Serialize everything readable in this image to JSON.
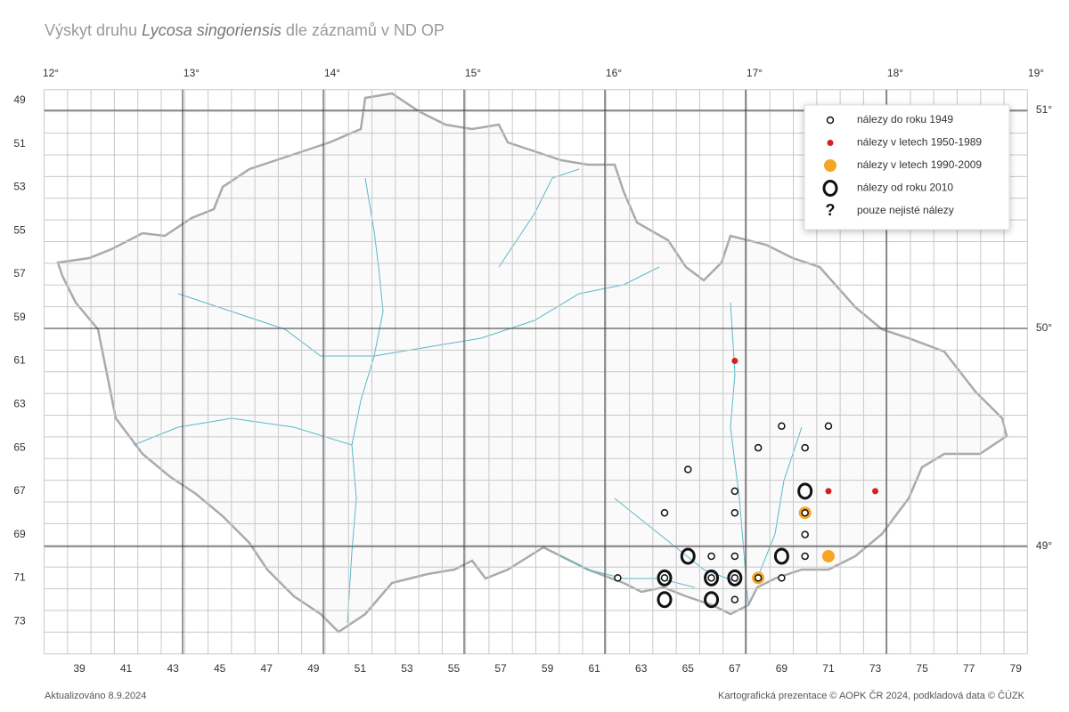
{
  "map": {
    "title": {
      "prefix": "Výskyt druhu",
      "species": "Lycosa singoriensis",
      "suffix": "dle záznamů v ND OP"
    },
    "updated": "Aktualizováno 8.9.2024",
    "credits": "Kartografická prezentace © AOPK ČR 2024, podkladová data © ČÚZK",
    "lon_ticks": [
      {
        "value": 12,
        "label": "12°"
      },
      {
        "value": 13,
        "label": "13°"
      },
      {
        "value": 14,
        "label": "14°"
      },
      {
        "value": 15,
        "label": "15°"
      },
      {
        "value": 16,
        "label": "16°"
      },
      {
        "value": 17,
        "label": "17°"
      },
      {
        "value": 18,
        "label": "18°"
      },
      {
        "value": 19,
        "label": "19°"
      }
    ],
    "lat_ticks": [
      {
        "value": 51,
        "label": "51°"
      },
      {
        "value": 50,
        "label": "50°"
      },
      {
        "value": 49,
        "label": "49°"
      }
    ],
    "columns": [
      39,
      41,
      43,
      45,
      47,
      49,
      51,
      53,
      55,
      57,
      59,
      61,
      63,
      65,
      67,
      69,
      71,
      73,
      75,
      77,
      79
    ],
    "rows": [
      49,
      51,
      53,
      55,
      57,
      59,
      61,
      63,
      65,
      67,
      69,
      71,
      73
    ],
    "series": [
      {
        "name": "nálezy do roku 1949",
        "color": "#111111",
        "marker": "ring-small",
        "col": [
          69,
          71,
          68,
          70,
          65,
          67,
          64,
          67,
          70,
          66,
          67,
          70,
          62,
          69,
          67,
          64,
          66,
          67,
          70,
          68
        ],
        "row": [
          64,
          64,
          65,
          65,
          66,
          67,
          68,
          68,
          69,
          70,
          70,
          70,
          71,
          71,
          72,
          71,
          71,
          71,
          68,
          71
        ]
      },
      {
        "name": "nálezy v letech 1950-1989",
        "color": "#d42020",
        "marker": "dot-small",
        "col": [
          67,
          71,
          73
        ],
        "row": [
          61,
          67,
          67
        ]
      },
      {
        "name": "nálezy v letech 1990-2009",
        "color": "#f5a623",
        "marker": "dot-large",
        "col": [
          70,
          71,
          68
        ],
        "row": [
          68,
          70,
          71
        ]
      },
      {
        "name": "nálezy od roku 2010",
        "color": "#111111",
        "marker": "ring-large",
        "col": [
          70,
          65,
          69,
          64,
          66,
          67,
          64,
          66
        ],
        "row": [
          67,
          70,
          70,
          71,
          71,
          71,
          72,
          72
        ]
      },
      {
        "name": "pouze nejisté nálezy",
        "color": "#111111",
        "marker": "question",
        "symbol": "?",
        "col": [],
        "row": []
      }
    ]
  }
}
